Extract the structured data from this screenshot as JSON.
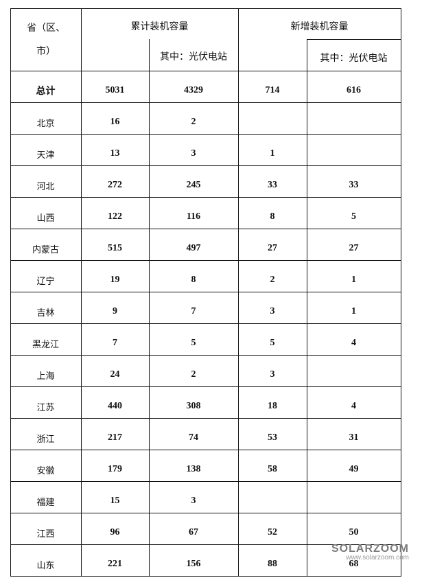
{
  "header": {
    "region": "省（区、市）",
    "cumulative": "累计装机容量",
    "cumulative_pv": "其中：光伏电站",
    "new": "新增装机容量",
    "new_pv": "其中：光伏电站"
  },
  "rows": [
    {
      "name": "总计",
      "c1": "5031",
      "c2": "4329",
      "c3": "714",
      "c4": "616"
    },
    {
      "name": "北京",
      "c1": "16",
      "c2": "2",
      "c3": "",
      "c4": ""
    },
    {
      "name": "天津",
      "c1": "13",
      "c2": "3",
      "c3": "1",
      "c4": ""
    },
    {
      "name": "河北",
      "c1": "272",
      "c2": "245",
      "c3": "33",
      "c4": "33"
    },
    {
      "name": "山西",
      "c1": "122",
      "c2": "116",
      "c3": "8",
      "c4": "5"
    },
    {
      "name": "内蒙古",
      "c1": "515",
      "c2": "497",
      "c3": "27",
      "c4": "27"
    },
    {
      "name": "辽宁",
      "c1": "19",
      "c2": "8",
      "c3": "2",
      "c4": "1"
    },
    {
      "name": "吉林",
      "c1": "9",
      "c2": "7",
      "c3": "3",
      "c4": "1"
    },
    {
      "name": "黑龙江",
      "c1": "7",
      "c2": "5",
      "c3": "5",
      "c4": "4"
    },
    {
      "name": "上海",
      "c1": "24",
      "c2": "2",
      "c3": "3",
      "c4": ""
    },
    {
      "name": "江苏",
      "c1": "440",
      "c2": "308",
      "c3": "18",
      "c4": "4"
    },
    {
      "name": "浙江",
      "c1": "217",
      "c2": "74",
      "c3": "53",
      "c4": "31"
    },
    {
      "name": "安徽",
      "c1": "179",
      "c2": "138",
      "c3": "58",
      "c4": "49"
    },
    {
      "name": "福建",
      "c1": "15",
      "c2": "3",
      "c3": "",
      "c4": ""
    },
    {
      "name": "江西",
      "c1": "96",
      "c2": "67",
      "c3": "52",
      "c4": "50"
    },
    {
      "name": "山东",
      "c1": "221",
      "c2": "156",
      "c3": "88",
      "c4": "68"
    }
  ],
  "watermark": {
    "brand": "SOLARZOOM",
    "url": "www.solarzoom.com"
  }
}
